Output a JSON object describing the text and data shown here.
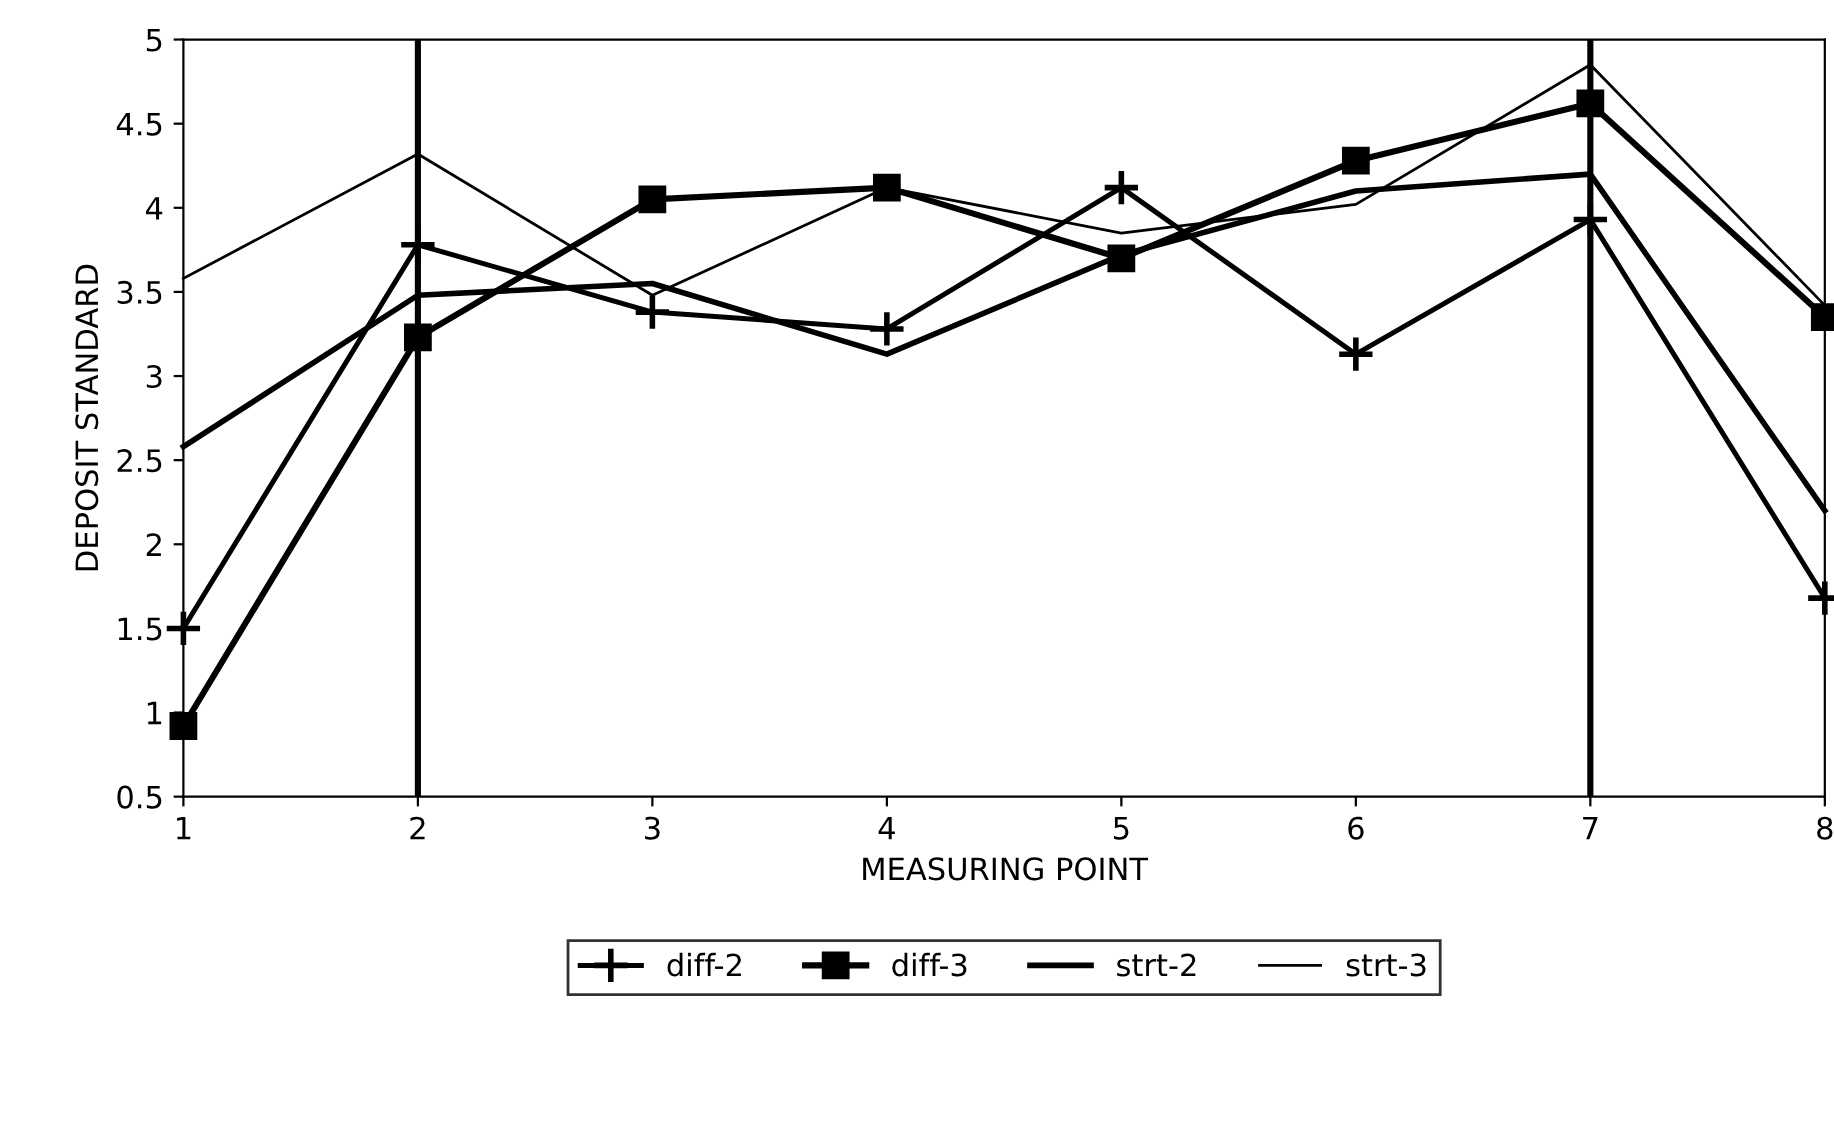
{
  "chart_data": {
    "type": "line",
    "xlabel": "MEASURING POINT",
    "ylabel": "DEPOSIT STANDARD",
    "x": [
      1,
      2,
      3,
      4,
      5,
      6,
      7,
      8
    ],
    "xlim": [
      1,
      8
    ],
    "xticks": [
      1,
      2,
      3,
      4,
      5,
      6,
      7,
      8
    ],
    "ylim": [
      0.5,
      5
    ],
    "yticks": [
      0.5,
      1,
      1.5,
      2,
      2.5,
      3,
      3.5,
      4,
      4.5,
      5
    ],
    "grid": false,
    "legend": "bottom",
    "ref_lines": [
      {
        "axis": "x",
        "value": 2,
        "color": "#000000"
      },
      {
        "axis": "x",
        "value": 7,
        "color": "#000000"
      }
    ],
    "series": [
      {
        "name": "diff-2",
        "color": "#000000",
        "marker": "cross",
        "values": [
          1.5,
          3.78,
          3.38,
          3.28,
          4.12,
          3.13,
          3.93,
          1.68
        ]
      },
      {
        "name": "diff-3",
        "color": "#000000",
        "marker": "square",
        "values": [
          0.92,
          3.23,
          4.05,
          4.12,
          3.7,
          4.28,
          4.62,
          3.35
        ]
      },
      {
        "name": "strt-2",
        "color": "#000000",
        "marker": "none",
        "values": [
          2.58,
          3.48,
          3.55,
          3.13,
          3.72,
          4.1,
          4.2,
          2.2
        ]
      },
      {
        "name": "strt-3",
        "color": "#000000",
        "marker": "none",
        "values": [
          3.58,
          4.32,
          3.48,
          4.12,
          3.85,
          4.02,
          4.85,
          3.42
        ]
      }
    ]
  }
}
